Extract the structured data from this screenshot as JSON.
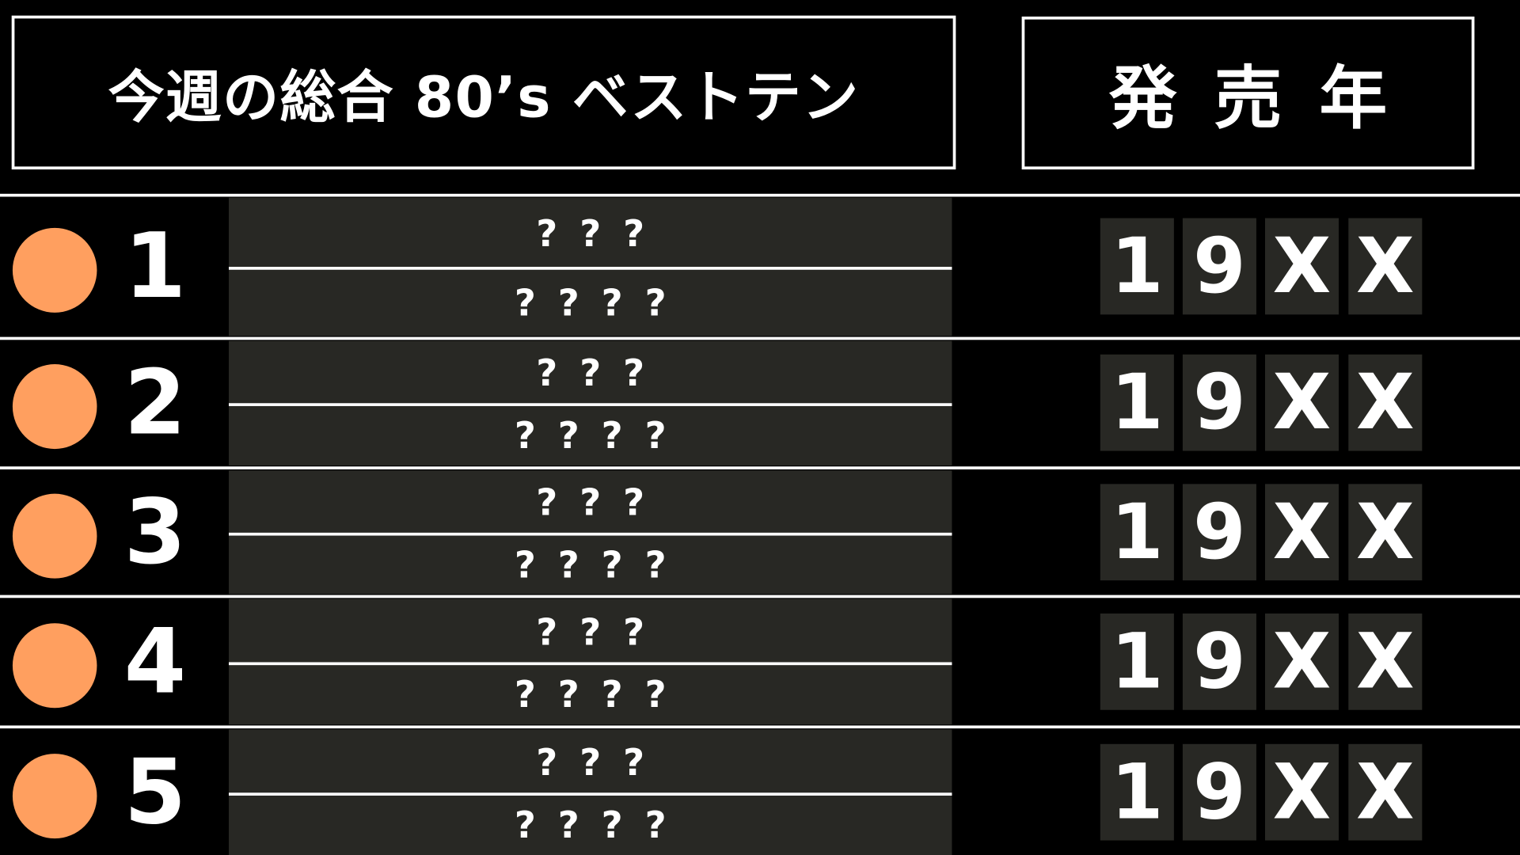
{
  "header": {
    "title": "今週の総合 80’s ベストテン",
    "year_label": "発売年"
  },
  "colors": {
    "marker": "#FF9F5F",
    "panel": "#282824",
    "background": "#000000"
  },
  "rows": [
    {
      "rank": "1",
      "title": "???",
      "artist": "????",
      "year": [
        "1",
        "9",
        "X",
        "X"
      ]
    },
    {
      "rank": "2",
      "title": "???",
      "artist": "????",
      "year": [
        "1",
        "9",
        "X",
        "X"
      ]
    },
    {
      "rank": "3",
      "title": "???",
      "artist": "????",
      "year": [
        "1",
        "9",
        "X",
        "X"
      ]
    },
    {
      "rank": "4",
      "title": "???",
      "artist": "????",
      "year": [
        "1",
        "9",
        "X",
        "X"
      ]
    },
    {
      "rank": "5",
      "title": "???",
      "artist": "????",
      "year": [
        "1",
        "9",
        "X",
        "X"
      ]
    }
  ]
}
